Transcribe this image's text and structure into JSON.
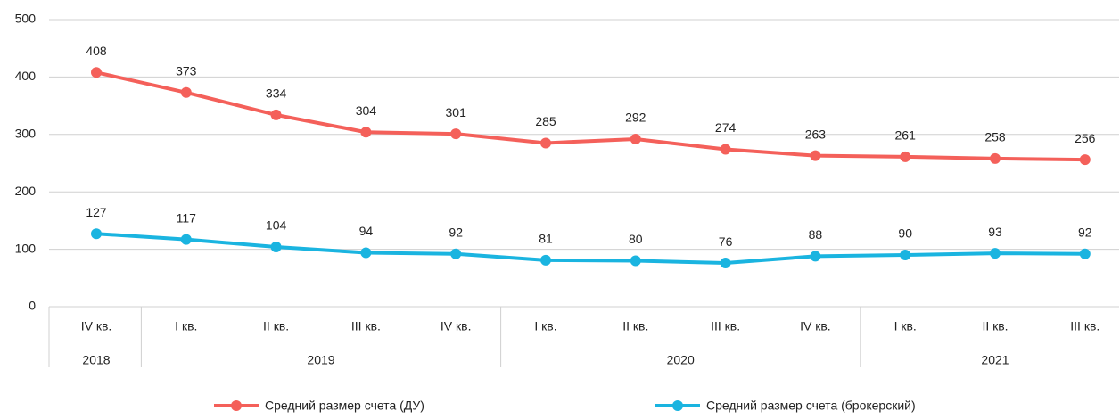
{
  "chart_data": {
    "type": "line",
    "category_groups": [
      {
        "name": "2018",
        "categories": [
          "IV кв."
        ]
      },
      {
        "name": "2019",
        "categories": [
          "I кв.",
          "II кв.",
          "III кв.",
          "IV кв."
        ]
      },
      {
        "name": "2020",
        "categories": [
          "I кв.",
          "II кв.",
          "III кв.",
          "IV кв."
        ]
      },
      {
        "name": "2021",
        "categories": [
          "I кв.",
          "II кв.",
          "III кв."
        ]
      }
    ],
    "series": [
      {
        "name": "Средний размер счета (ДУ)",
        "color": "#f4605a",
        "values": [
          408,
          373,
          334,
          304,
          301,
          285,
          292,
          274,
          263,
          261,
          258,
          256
        ]
      },
      {
        "name": "Средний размер счета (брокерский)",
        "color": "#1ab4e0",
        "values": [
          127,
          117,
          104,
          94,
          92,
          81,
          80,
          76,
          88,
          90,
          93,
          92
        ]
      }
    ],
    "ylim": [
      0,
      500
    ],
    "yticks": [
      0,
      100,
      200,
      300,
      400,
      500
    ],
    "grid": true,
    "legend": "bottom",
    "data_labels": true
  }
}
